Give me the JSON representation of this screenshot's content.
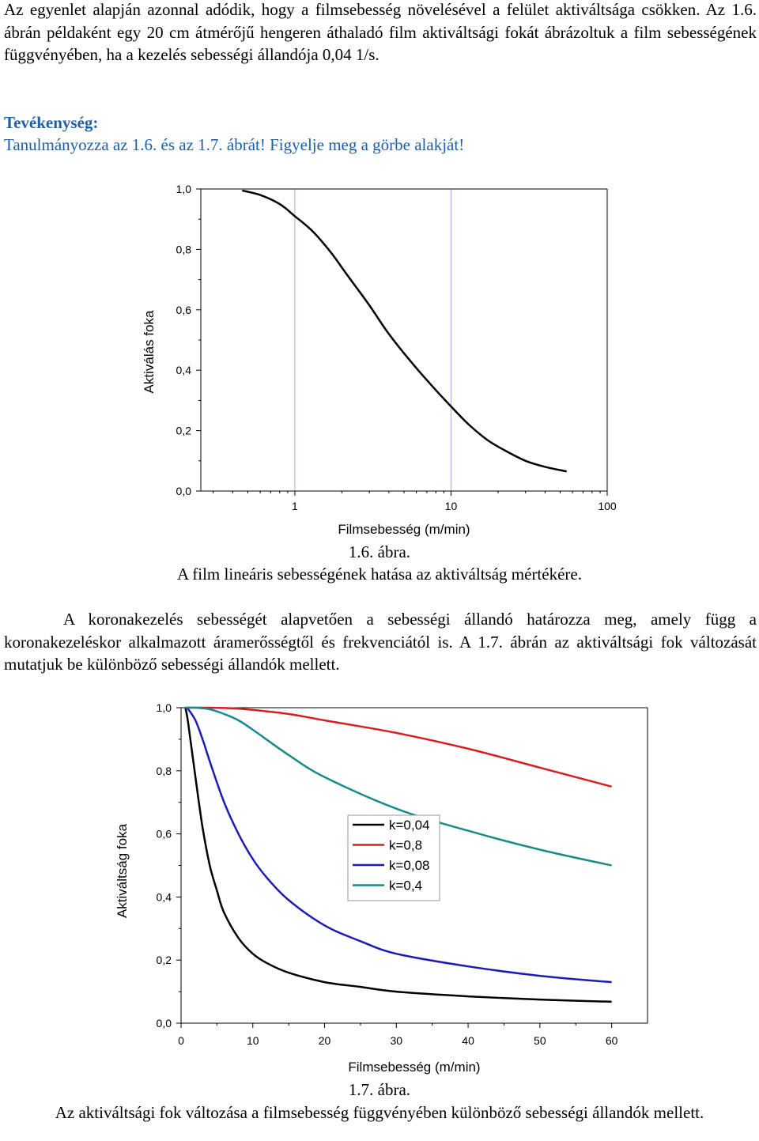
{
  "paragraph1": "Az egyenlet alapján azonnal adódik, hogy a filmsebesség növelésével a felület aktiváltsága csökken. Az 1.6. ábrán példaként egy 20 cm átmérőjű hengeren áthaladó film aktiváltsági fokát ábrázoltuk a film sebességének függvényében, ha a kezelés sebességi állandója 0,04 1/s.",
  "activity": {
    "title": "Tevékenység:",
    "text": "Tanulmányozza az 1.6. és az 1.7. ábrát! Figyelje meg a görbe alakját!"
  },
  "figure1": {
    "caption_number": "1.6. ábra.",
    "caption_text": "A film lineáris sebességének hatása az aktiváltság mértékére."
  },
  "paragraph2": "A koronakezelés sebességét alapvetően a sebességi állandó határozza meg, amely függ a koronakezeléskor alkalmazott áramerősségtől és frekvenciától is. A 1.7. ábrán az aktiváltsági fok változását mutatjuk be különböző sebességi állandók mellett.",
  "figure2": {
    "caption_number": "1.7. ábra.",
    "caption_text": "Az aktiváltsági fok változása a filmsebesség függvényében különböző sebességi állandók mellett."
  },
  "chart_data": [
    {
      "type": "line",
      "title": "",
      "xlabel": "Filmsebesség (m/min)",
      "ylabel": "Aktiválás foka",
      "x_scale": "log",
      "xlim": [
        0.25,
        100
      ],
      "ylim": [
        0,
        1
      ],
      "x_ticks": [
        "1",
        "10",
        "100"
      ],
      "y_ticks": [
        "0,0",
        "0,2",
        "0,4",
        "0,6",
        "0,8",
        "1,0"
      ],
      "grid": true,
      "legend": "none",
      "series": [
        {
          "color": "#000000",
          "x": [
            0.46,
            0.6,
            0.8,
            1.0,
            1.3,
            1.7,
            2.2,
            3.0,
            4.0,
            5.5,
            7.5,
            10,
            13,
            17,
            22,
            30,
            40,
            55
          ],
          "y": [
            0.995,
            0.98,
            0.95,
            0.91,
            0.86,
            0.79,
            0.71,
            0.615,
            0.52,
            0.43,
            0.35,
            0.28,
            0.22,
            0.17,
            0.135,
            0.1,
            0.08,
            0.065
          ]
        }
      ]
    },
    {
      "type": "line",
      "title": "",
      "xlabel": "Filmsebesség (m/min)",
      "ylabel": "Aktiváltság foka",
      "xlim": [
        0,
        65
      ],
      "ylim": [
        0,
        1
      ],
      "x_ticks": [
        "0",
        "10",
        "20",
        "30",
        "40",
        "50",
        "60"
      ],
      "y_ticks": [
        "0,0",
        "0,2",
        "0,4",
        "0,6",
        "0,8",
        "1,0"
      ],
      "grid": false,
      "legend": "center-right",
      "series": [
        {
          "name": "k=0,04",
          "color": "#000000",
          "x": [
            0.6,
            1,
            2,
            3,
            4,
            5,
            6,
            8,
            10,
            12,
            15,
            20,
            25,
            30,
            40,
            50,
            60
          ],
          "y": [
            1.0,
            0.95,
            0.78,
            0.62,
            0.5,
            0.42,
            0.35,
            0.27,
            0.22,
            0.19,
            0.16,
            0.13,
            0.115,
            0.1,
            0.085,
            0.075,
            0.068
          ]
        },
        {
          "name": "k=0,8",
          "color": "#d42020",
          "x": [
            0.6,
            2,
            4,
            6,
            8,
            10,
            15,
            20,
            30,
            40,
            50,
            60
          ],
          "y": [
            1.0,
            1.0,
            1.0,
            0.999,
            0.997,
            0.993,
            0.98,
            0.96,
            0.92,
            0.87,
            0.81,
            0.75
          ]
        },
        {
          "name": "k=0,08",
          "color": "#1c1cb4",
          "x": [
            0.6,
            1,
            2,
            3,
            4,
            6,
            8,
            10,
            12,
            15,
            20,
            25,
            30,
            40,
            50,
            60
          ],
          "y": [
            1.0,
            0.995,
            0.96,
            0.9,
            0.83,
            0.7,
            0.6,
            0.52,
            0.46,
            0.39,
            0.31,
            0.26,
            0.22,
            0.18,
            0.15,
            0.13
          ]
        },
        {
          "name": "k=0,4",
          "color": "#1a8a8a",
          "x": [
            0.6,
            2,
            4,
            6,
            8,
            10,
            15,
            20,
            30,
            40,
            50,
            60
          ],
          "y": [
            1.0,
            1.0,
            0.995,
            0.98,
            0.96,
            0.93,
            0.85,
            0.78,
            0.68,
            0.61,
            0.55,
            0.5
          ]
        }
      ]
    }
  ]
}
